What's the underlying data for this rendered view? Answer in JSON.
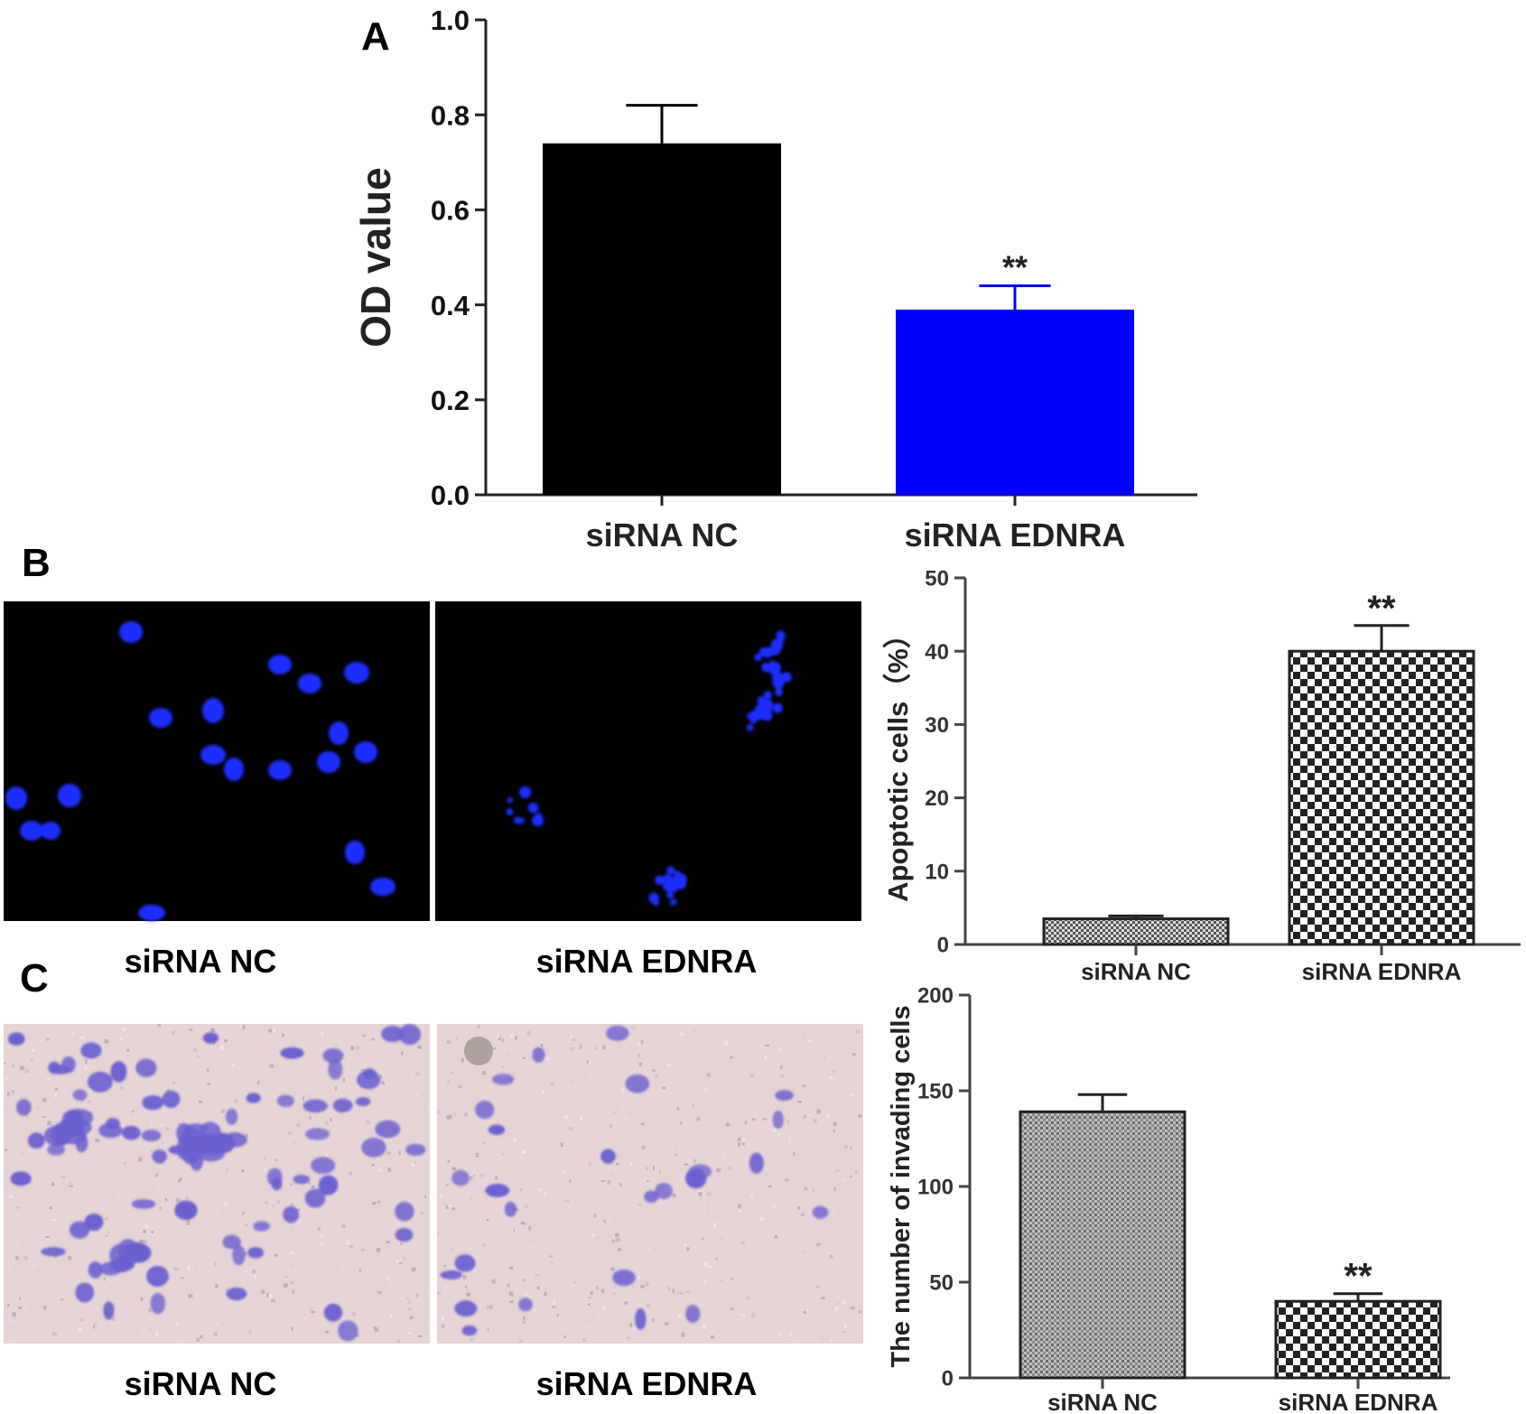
{
  "panels": [
    {
      "letter": "A"
    },
    {
      "letter": "B"
    },
    {
      "letter": "C"
    }
  ],
  "micrographs": {
    "B": {
      "labels": [
        "siRNA NC",
        "siRNA EDNRA"
      ],
      "background": "#000000",
      "stain_color": "#1a2eff"
    },
    "C": {
      "labels": [
        "siRNA NC",
        "siRNA EDNRA"
      ],
      "background": "#e6d4d6",
      "stain_color": "#6b5fd0"
    }
  },
  "chart_data": [
    {
      "panel": "A",
      "type": "bar",
      "categories": [
        "siRNA NC",
        "siRNA EDNRA"
      ],
      "values": [
        0.74,
        0.39
      ],
      "errors": [
        0.08,
        0.05
      ],
      "significance": [
        "",
        "**"
      ],
      "colors": [
        "#000000",
        "#0000ff"
      ],
      "fills": [
        "solid",
        "solid"
      ],
      "ylabel": "OD value",
      "ylim": [
        0,
        1.0
      ],
      "yticks": [
        0.0,
        0.2,
        0.4,
        0.6,
        0.8,
        1.0
      ],
      "ytick_labels": [
        "0.0",
        "0.2",
        "0.4",
        "0.6",
        "0.8",
        "1.0"
      ],
      "grid": false
    },
    {
      "panel": "B",
      "type": "bar",
      "categories": [
        "siRNA NC",
        "siRNA EDNRA"
      ],
      "values": [
        3.5,
        40
      ],
      "errors": [
        0.4,
        3.5
      ],
      "significance": [
        "",
        "**"
      ],
      "colors": [
        "#ffffff",
        "#ffffff"
      ],
      "fills": [
        "dots",
        "checker"
      ],
      "ylabel": "Apoptotic cells（%）",
      "ylim": [
        0,
        50
      ],
      "yticks": [
        0,
        10,
        20,
        30,
        40,
        50
      ],
      "ytick_labels": [
        "0",
        "10",
        "20",
        "30",
        "40",
        "50"
      ],
      "grid": false
    },
    {
      "panel": "C",
      "type": "bar",
      "categories": [
        "siRNA NC",
        "siRNA EDNRA"
      ],
      "values": [
        139,
        40
      ],
      "errors": [
        9,
        4
      ],
      "significance": [
        "",
        "**"
      ],
      "colors": [
        "#ffffff",
        "#ffffff"
      ],
      "fills": [
        "lines",
        "checker"
      ],
      "ylabel": "The number of invading cells",
      "ylim": [
        0,
        200
      ],
      "yticks": [
        0,
        50,
        100,
        150,
        200
      ],
      "ytick_labels": [
        "0",
        "50",
        "100",
        "150",
        "200"
      ],
      "grid": false
    }
  ]
}
